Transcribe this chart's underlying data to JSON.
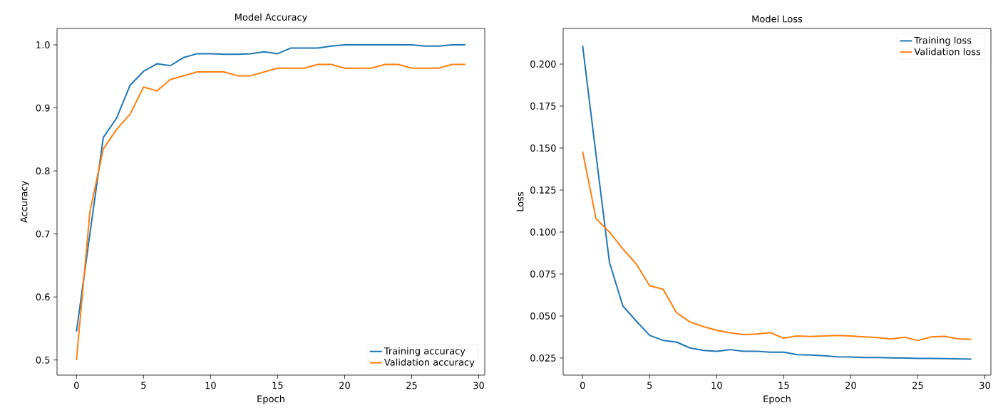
{
  "chart_data": [
    {
      "type": "line",
      "title": "Model Accuracy",
      "xlabel": "Epoch",
      "ylabel": "Accuracy",
      "x": [
        0,
        1,
        2,
        3,
        4,
        5,
        6,
        7,
        8,
        9,
        10,
        11,
        12,
        13,
        14,
        15,
        16,
        17,
        18,
        19,
        20,
        21,
        22,
        23,
        24,
        25,
        26,
        27,
        28,
        29
      ],
      "series": [
        {
          "name": "Training accuracy",
          "color": "#1f77b4",
          "values": [
            0.545,
            0.7,
            0.853,
            0.884,
            0.936,
            0.958,
            0.97,
            0.967,
            0.98,
            0.986,
            0.986,
            0.985,
            0.985,
            0.986,
            0.989,
            0.986,
            0.995,
            0.995,
            0.995,
            0.998,
            1.0,
            1.0,
            1.0,
            1.0,
            1.0,
            1.0,
            0.998,
            0.998,
            1.0,
            1.0
          ]
        },
        {
          "name": "Validation accuracy",
          "color": "#ff7f0e",
          "values": [
            0.5,
            0.735,
            0.835,
            0.866,
            0.89,
            0.933,
            0.927,
            0.945,
            0.951,
            0.957,
            0.957,
            0.957,
            0.951,
            0.951,
            0.957,
            0.963,
            0.963,
            0.963,
            0.969,
            0.969,
            0.963,
            0.963,
            0.963,
            0.969,
            0.969,
            0.963,
            0.963,
            0.963,
            0.969,
            0.969
          ]
        }
      ],
      "xlim": [
        -1.45,
        30.45
      ],
      "ylim": [
        0.476,
        1.026
      ],
      "xticks": [
        0,
        5,
        10,
        15,
        20,
        25,
        30
      ],
      "yticks": [
        {
          "value": 0.5,
          "label": "0.5"
        },
        {
          "value": 0.6,
          "label": "0.6"
        },
        {
          "value": 0.7,
          "label": "0.7"
        },
        {
          "value": 0.8,
          "label": "0.8"
        },
        {
          "value": 0.9,
          "label": "0.9"
        },
        {
          "value": 1.0,
          "label": "1.0"
        }
      ],
      "legend": "bottom right",
      "line_style": "solid",
      "marker": "none"
    },
    {
      "type": "line",
      "title": "Model Loss",
      "xlabel": "Epoch",
      "ylabel": "Loss",
      "x": [
        0,
        1,
        2,
        3,
        4,
        5,
        6,
        7,
        8,
        9,
        10,
        11,
        12,
        13,
        14,
        15,
        16,
        17,
        18,
        19,
        20,
        21,
        22,
        23,
        24,
        25,
        26,
        27,
        28,
        29
      ],
      "series": [
        {
          "name": "Training loss",
          "color": "#1f77b4",
          "values": [
            0.211,
            0.146,
            0.082,
            0.056,
            0.047,
            0.0385,
            0.0355,
            0.0345,
            0.031,
            0.0295,
            0.029,
            0.03,
            0.029,
            0.029,
            0.0285,
            0.0285,
            0.027,
            0.0268,
            0.0263,
            0.0257,
            0.0256,
            0.0253,
            0.0253,
            0.0251,
            0.025,
            0.0248,
            0.0248,
            0.0247,
            0.0245,
            0.0243
          ]
        },
        {
          "name": "Validation loss",
          "color": "#ff7f0e",
          "values": [
            0.148,
            0.108,
            0.1,
            0.09,
            0.081,
            0.068,
            0.066,
            0.052,
            0.0465,
            0.0437,
            0.0415,
            0.04,
            0.039,
            0.0393,
            0.0401,
            0.0368,
            0.0381,
            0.0378,
            0.0381,
            0.0384,
            0.0381,
            0.0376,
            0.0372,
            0.0363,
            0.0374,
            0.0354,
            0.0376,
            0.0379,
            0.0364,
            0.0361
          ]
        }
      ],
      "xlim": [
        -1.45,
        30.45
      ],
      "ylim": [
        0.0148,
        0.2212
      ],
      "xticks": [
        0,
        5,
        10,
        15,
        20,
        25,
        30
      ],
      "yticks": [
        {
          "value": 0.025,
          "label": "0.025"
        },
        {
          "value": 0.05,
          "label": "0.050"
        },
        {
          "value": 0.075,
          "label": "0.075"
        },
        {
          "value": 0.1,
          "label": "0.100"
        },
        {
          "value": 0.125,
          "label": "0.125"
        },
        {
          "value": 0.15,
          "label": "0.150"
        },
        {
          "value": 0.175,
          "label": "0.175"
        },
        {
          "value": 0.2,
          "label": "0.200"
        }
      ],
      "legend": "top right",
      "line_style": "solid",
      "marker": "none"
    }
  ]
}
